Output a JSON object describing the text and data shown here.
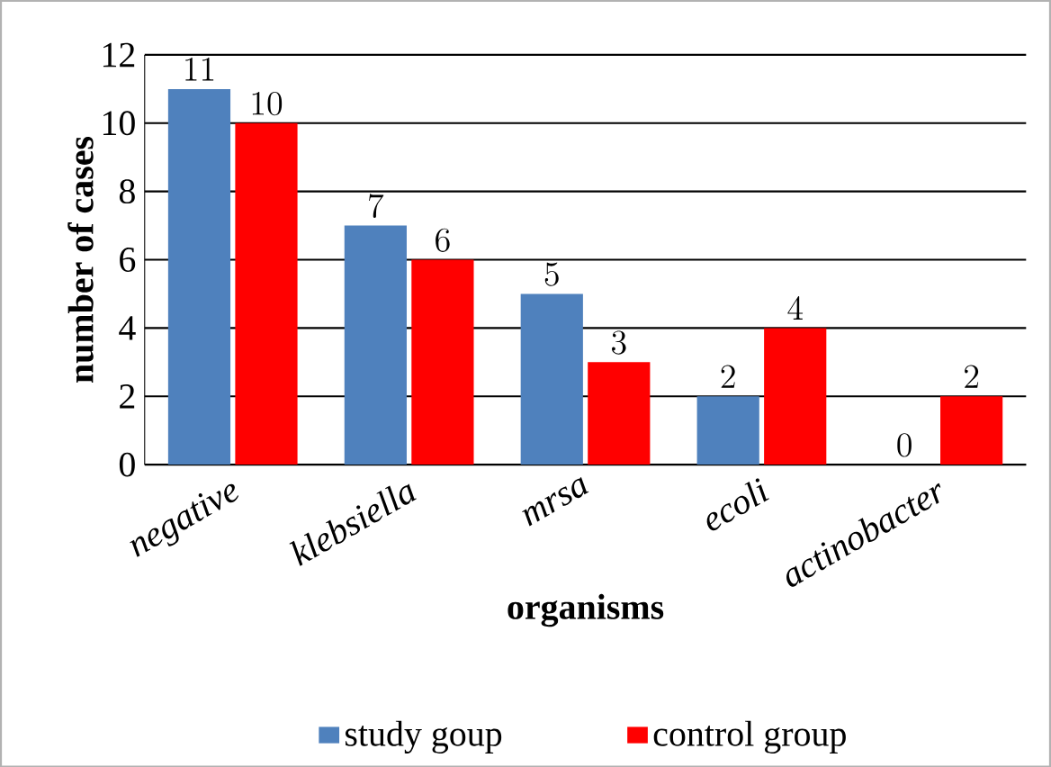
{
  "chart_data": {
    "type": "bar",
    "xlabel": "organisms",
    "ylabel": "number of cases",
    "categories": [
      "negative",
      "klebsiella",
      "mrsa",
      "ecoli",
      "actinobacter"
    ],
    "series": [
      {
        "name": "study goup",
        "color": "#4f81bd",
        "values": [
          11,
          7,
          5,
          2,
          0
        ]
      },
      {
        "name": "control group",
        "color": "#ff0000",
        "values": [
          10,
          6,
          3,
          4,
          2
        ]
      }
    ],
    "ylim": [
      0,
      12
    ],
    "yticks": [
      0,
      2,
      4,
      6,
      8,
      10,
      12
    ],
    "grid": "y",
    "data_labels": true,
    "legend": "bottom"
  }
}
